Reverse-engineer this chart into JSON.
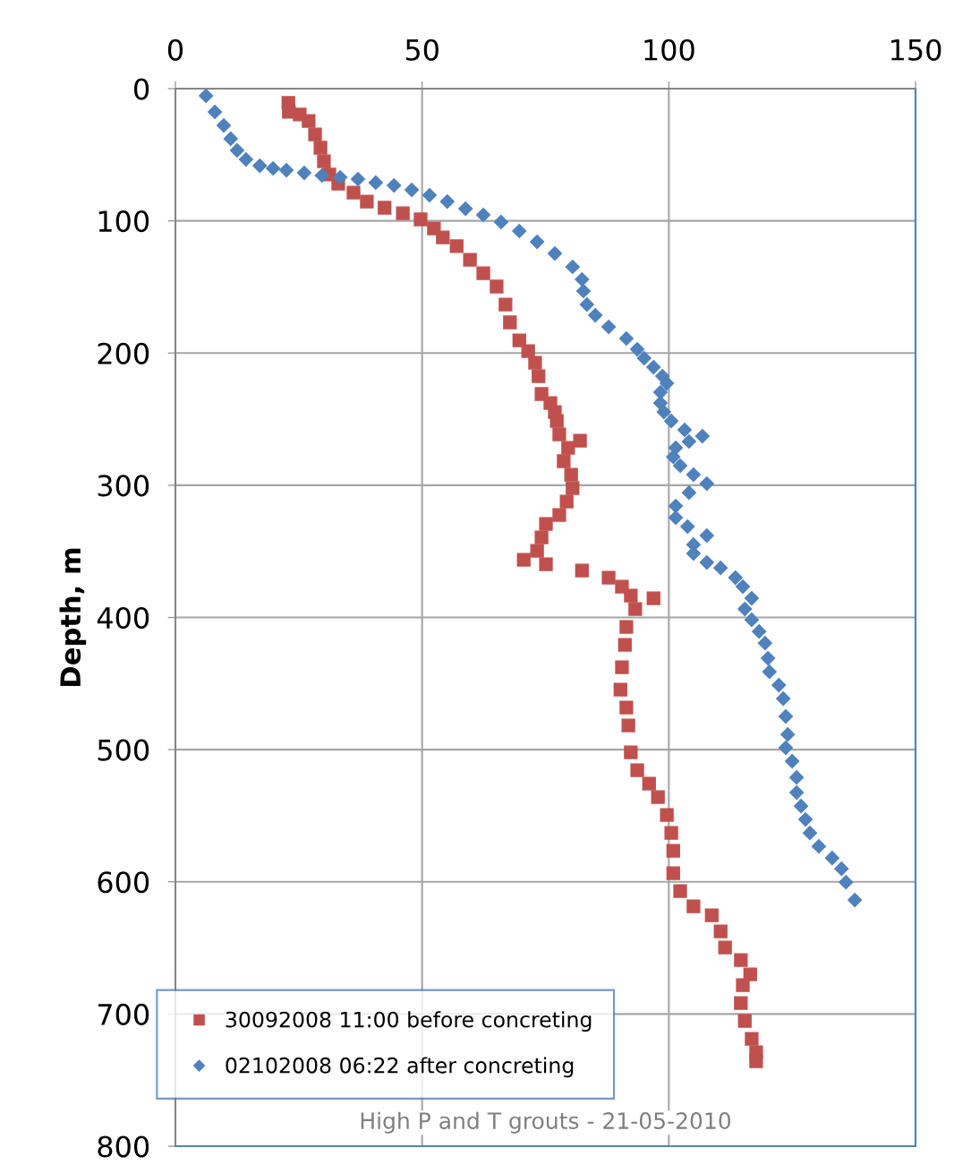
{
  "chart_data": {
    "type": "scatter",
    "ylabel": "Depth, m",
    "xlim": [
      0,
      150
    ],
    "xticks": [
      0,
      50,
      100,
      150
    ],
    "ylim": [
      800,
      0
    ],
    "yticks": [
      0,
      100,
      200,
      300,
      400,
      500,
      600,
      700,
      800
    ],
    "grid": true,
    "legend": "bottom left",
    "annotations": [
      "High P and T grouts - 21-05-2010"
    ],
    "series": [
      {
        "name": "30092008 11:00 before concreting",
        "color": "#c0504d",
        "marker": "square",
        "x": [
          22.9,
          23.0,
          25.2,
          27.0,
          28.3,
          29.4,
          30.1,
          31.2,
          33.0,
          36.1,
          38.8,
          42.4,
          46.1,
          49.7,
          52.4,
          54.2,
          57.0,
          59.7,
          62.4,
          65.1,
          66.9,
          67.8,
          69.7,
          71.5,
          72.9,
          73.6,
          74.2,
          76.0,
          76.9,
          77.3,
          77.8,
          82.0,
          79.6,
          78.7,
          80.2,
          80.5,
          79.3,
          77.8,
          75.1,
          74.2,
          73.3,
          70.6,
          75.1,
          82.4,
          87.8,
          90.5,
          92.3,
          96.9,
          93.2,
          91.4,
          91.1,
          90.5,
          90.2,
          91.4,
          91.8,
          92.3,
          93.6,
          96.0,
          97.8,
          99.6,
          100.5,
          100.9,
          100.9,
          102.3,
          105.0,
          108.7,
          110.5,
          111.4,
          114.6,
          116.5,
          115.0,
          114.6,
          115.4,
          116.8,
          117.7,
          117.7
        ],
        "values": [
          10.8,
          17.6,
          19.6,
          24.4,
          34.6,
          44.7,
          54.9,
          65.0,
          71.8,
          78.6,
          85.4,
          90.1,
          94.2,
          98.9,
          105.7,
          112.5,
          119.2,
          129.4,
          139.6,
          149.7,
          163.3,
          176.8,
          190.4,
          198.5,
          207.3,
          217.5,
          231.0,
          237.8,
          244.6,
          251.4,
          261.5,
          266.3,
          271.7,
          281.8,
          292.0,
          302.2,
          312.3,
          322.5,
          329.3,
          339.4,
          349.6,
          356.4,
          359.8,
          364.5,
          369.9,
          376.7,
          383.5,
          385.5,
          393.6,
          407.2,
          420.7,
          437.7,
          454.6,
          468.2,
          481.7,
          502.0,
          515.6,
          525.7,
          535.9,
          549.5,
          563.0,
          576.6,
          593.5,
          607.0,
          618.6,
          625.3,
          637.5,
          649.7,
          659.2,
          670.0,
          678.2,
          691.7,
          705.3,
          718.8,
          729.0,
          735.8
        ]
      },
      {
        "name": "02102008 06:22 after concreting",
        "color": "#4f81bd",
        "marker": "diamond",
        "x": [
          6.2,
          8.0,
          9.8,
          11.2,
          12.5,
          14.3,
          17.1,
          19.8,
          22.5,
          26.1,
          29.7,
          33.4,
          37.0,
          40.6,
          44.3,
          47.9,
          51.5,
          55.1,
          58.8,
          62.4,
          66.0,
          69.7,
          73.3,
          76.9,
          80.5,
          82.4,
          82.7,
          83.4,
          85.1,
          87.8,
          91.4,
          93.6,
          95.0,
          96.9,
          98.7,
          99.6,
          98.3,
          98.3,
          99.0,
          100.5,
          103.2,
          106.8,
          104.1,
          101.4,
          100.9,
          102.3,
          105.0,
          107.7,
          104.1,
          101.4,
          101.4,
          103.8,
          107.7,
          105.0,
          105.0,
          107.7,
          110.5,
          113.5,
          115.0,
          116.8,
          115.4,
          116.8,
          118.3,
          119.5,
          120.1,
          120.4,
          122.3,
          123.2,
          123.7,
          124.1,
          123.7,
          125.0,
          125.9,
          125.9,
          126.8,
          127.7,
          128.6,
          130.4,
          133.1,
          135.0,
          135.9,
          137.7
        ],
        "values": [
          5.4,
          17.6,
          27.8,
          37.9,
          46.7,
          53.5,
          58.3,
          60.3,
          61.7,
          63.7,
          65.7,
          67.1,
          68.4,
          71.1,
          73.2,
          76.6,
          80.6,
          85.4,
          90.8,
          95.5,
          100.9,
          107.7,
          115.9,
          124.7,
          134.8,
          144.3,
          153.1,
          163.3,
          171.4,
          180.2,
          189.0,
          197.2,
          203.9,
          210.7,
          217.5,
          222.9,
          229.7,
          237.8,
          244.6,
          251.4,
          258.1,
          262.9,
          266.9,
          271.7,
          278.5,
          285.2,
          292.0,
          298.8,
          305.6,
          315.7,
          324.5,
          331.3,
          338.1,
          344.9,
          351.6,
          358.4,
          362.5,
          369.9,
          376.7,
          385.5,
          393.6,
          401.8,
          410.6,
          419.4,
          430.9,
          441.1,
          451.2,
          461.4,
          474.9,
          488.5,
          498.6,
          508.8,
          521.0,
          532.5,
          542.7,
          552.8,
          563.0,
          573.2,
          582.0,
          590.1,
          600.3,
          613.8
        ]
      }
    ]
  }
}
